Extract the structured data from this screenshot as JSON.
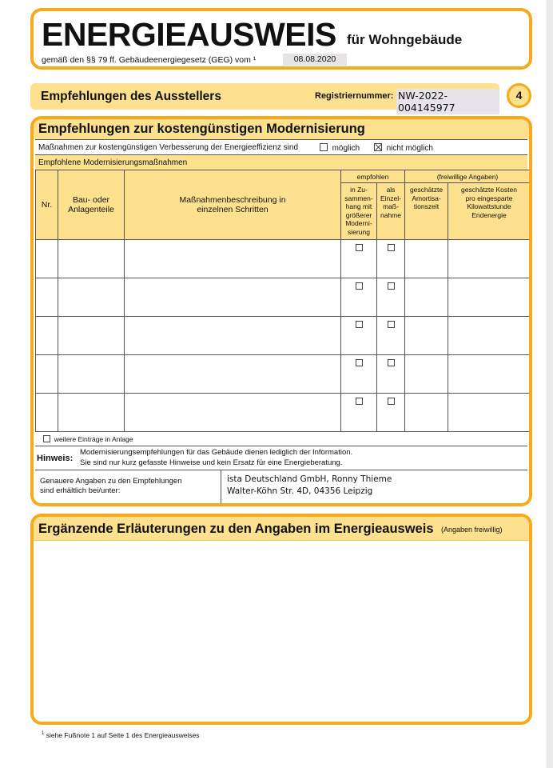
{
  "header": {
    "title": "ENERGIEAUSWEIS",
    "title_suffix": "für Wohngebäude",
    "subtitle": "gemäß den §§ 79 ff. Gebäudeenergiegesetz (GEG) vom ¹",
    "date": "08.08.2020"
  },
  "section_bar": {
    "title": "Empfehlungen des Ausstellers",
    "reg_label": "Registriernummer:",
    "reg_value": "NW-2022-004145977",
    "page_number": "4"
  },
  "recommendations": {
    "title": "Empfehlungen zur kostengünstigen Modernisierung",
    "measures_text": "Maßnahmen zur kostengünstigen Verbesserung der Energieeffizienz sind",
    "option_possible": "möglich",
    "option_possible_checked": false,
    "option_not_possible": "nicht möglich",
    "option_not_possible_checked": true,
    "subheading": "Empfohlene Modernisierungsmaßnahmen",
    "columns": {
      "nr": "Nr.",
      "component": "Bau- oder Anlagenteile",
      "description": "Maßnahmenbeschreibung in einzelnen Schritten",
      "recommended_group": "empfohlen",
      "in_context": "in Zu-sammen-hang mit größerer Moderni-sierung",
      "single": "als Einzel-maß-nahme",
      "optional_group": "(freiwillige Angaben)",
      "amortization": "geschätzte Amortisa-tionszeit",
      "cost_per_kwh": "geschätzte Kosten pro eingesparte Kilowattstunde Endenergie"
    },
    "rows": [
      {
        "nr": "",
        "component": "",
        "description": "",
        "in_context": false,
        "single": false,
        "amortization": "",
        "cost": ""
      },
      {
        "nr": "",
        "component": "",
        "description": "",
        "in_context": false,
        "single": false,
        "amortization": "",
        "cost": ""
      },
      {
        "nr": "",
        "component": "",
        "description": "",
        "in_context": false,
        "single": false,
        "amortization": "",
        "cost": ""
      },
      {
        "nr": "",
        "component": "",
        "description": "",
        "in_context": false,
        "single": false,
        "amortization": "",
        "cost": ""
      },
      {
        "nr": "",
        "component": "",
        "description": "",
        "in_context": false,
        "single": false,
        "amortization": "",
        "cost": ""
      }
    ],
    "more_entries": "weitere Einträge in Anlage",
    "note_label": "Hinweis:",
    "note_line1": "Modernisierungsempfehlungen für das Gebäude dienen lediglich der Information.",
    "note_line2": "Sie sind nur kurz gefasste Hinweise und kein Ersatz für eine Energieberatung.",
    "contact_label_1": "Genauere Angaben zu den Empfehlungen",
    "contact_label_2": "sind erhältlich bei/unter:",
    "contact_line1": "ista Deutschland GmbH, Ronny Thieme",
    "contact_line2": "Walter-Köhn Str. 4D, 04356 Leipzig"
  },
  "explanations": {
    "title": "Ergänzende Erläuterungen zu den Angaben im Energieausweis",
    "optional": "(Angaben freiwillig)",
    "body": ""
  },
  "footnote": {
    "mark": "1",
    "text": "siehe Fußnote 1 auf Seite 1 des Energieausweises"
  },
  "colors": {
    "border": "#f6a91d",
    "fill": "#fde18e"
  }
}
